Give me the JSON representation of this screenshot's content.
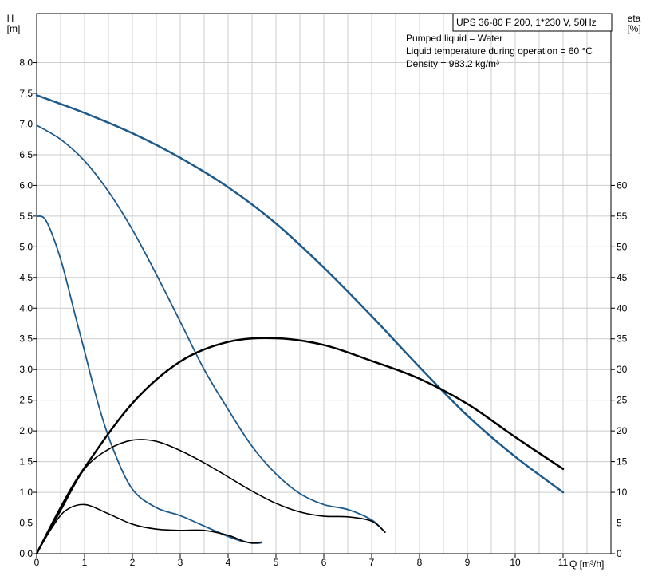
{
  "chart_data": {
    "type": "line",
    "title": "UPS 36-80 F 200, 1*230 V, 50Hz",
    "notes": [
      "Pumped liquid = Water",
      "Liquid temperature during operation = 60 °C",
      "Density = 983.2 kg/m³"
    ],
    "xlabel": "Q [m³/h]",
    "ylabel_left": {
      "symbol": "H",
      "unit": "[m]"
    },
    "ylabel_right": {
      "symbol": "eta",
      "unit": "[%]"
    },
    "xlim": [
      0,
      12
    ],
    "ylim_left": [
      0,
      8.8
    ],
    "ylim_right": [
      0,
      88
    ],
    "x_ticks": [
      "0",
      "1",
      "2",
      "3",
      "4",
      "5",
      "6",
      "7",
      "8",
      "9",
      "10",
      "11"
    ],
    "y_left_ticks": [
      "0.0",
      "0.5",
      "1.0",
      "1.5",
      "2.0",
      "2.5",
      "3.0",
      "3.5",
      "4.0",
      "4.5",
      "5.0",
      "5.5",
      "6.0",
      "6.5",
      "7.0",
      "7.5",
      "8.0"
    ],
    "y_right_ticks": [
      "0",
      "5",
      "10",
      "15",
      "20",
      "25",
      "30",
      "35",
      "40",
      "45",
      "50",
      "55",
      "60"
    ],
    "grid": true,
    "colors": {
      "head": "#1d5a8c",
      "efficiency": "#000000",
      "grid": "#cccccc",
      "border": "#000000"
    },
    "series": [
      {
        "axis": "left",
        "kind": "head",
        "color": "#1d5a8c",
        "width": 2.5,
        "points": [
          [
            0,
            7.47
          ],
          [
            1,
            7.18
          ],
          [
            2,
            6.85
          ],
          [
            3,
            6.45
          ],
          [
            4,
            5.97
          ],
          [
            5,
            5.38
          ],
          [
            6,
            4.66
          ],
          [
            7,
            3.87
          ],
          [
            8,
            3.04
          ],
          [
            9,
            2.25
          ],
          [
            10,
            1.58
          ],
          [
            11,
            1.0
          ]
        ]
      },
      {
        "axis": "left",
        "kind": "head",
        "color": "#1d5a8c",
        "width": 1.8,
        "points": [
          [
            0,
            6.98
          ],
          [
            0.5,
            6.75
          ],
          [
            1,
            6.4
          ],
          [
            1.5,
            5.9
          ],
          [
            2,
            5.28
          ],
          [
            2.5,
            4.55
          ],
          [
            3,
            3.78
          ],
          [
            3.5,
            3.0
          ],
          [
            4,
            2.35
          ],
          [
            4.5,
            1.75
          ],
          [
            5,
            1.3
          ],
          [
            5.5,
            0.98
          ],
          [
            6,
            0.8
          ],
          [
            6.5,
            0.72
          ],
          [
            7,
            0.55
          ],
          [
            7.28,
            0.35
          ]
        ]
      },
      {
        "axis": "left",
        "kind": "head",
        "color": "#1d5a8c",
        "width": 1.8,
        "points": [
          [
            0,
            5.5
          ],
          [
            0.2,
            5.42
          ],
          [
            0.5,
            4.8
          ],
          [
            0.8,
            3.9
          ],
          [
            1,
            3.3
          ],
          [
            1.3,
            2.4
          ],
          [
            1.6,
            1.7
          ],
          [
            2,
            1.05
          ],
          [
            2.5,
            0.75
          ],
          [
            3,
            0.62
          ],
          [
            3.5,
            0.45
          ],
          [
            4,
            0.28
          ],
          [
            4.3,
            0.2
          ],
          [
            4.6,
            0.17
          ],
          [
            4.7,
            0.18
          ]
        ]
      },
      {
        "axis": "right",
        "kind": "efficiency",
        "color": "#000000",
        "width": 2.5,
        "points": [
          [
            0,
            0
          ],
          [
            0.5,
            7.5
          ],
          [
            1,
            14
          ],
          [
            2,
            24.5
          ],
          [
            3,
            31.3
          ],
          [
            4,
            34.5
          ],
          [
            5,
            35.1
          ],
          [
            6,
            34.0
          ],
          [
            7,
            31.4
          ],
          [
            8,
            28.5
          ],
          [
            9,
            24.4
          ],
          [
            10,
            19.0
          ],
          [
            11,
            13.8
          ]
        ]
      },
      {
        "axis": "right",
        "kind": "efficiency",
        "color": "#000000",
        "width": 1.6,
        "points": [
          [
            0,
            0
          ],
          [
            0.5,
            7.0
          ],
          [
            1,
            13.8
          ],
          [
            1.5,
            17.0
          ],
          [
            2,
            18.5
          ],
          [
            2.5,
            18.3
          ],
          [
            3,
            16.8
          ],
          [
            3.5,
            14.8
          ],
          [
            4,
            12.5
          ],
          [
            4.5,
            10.2
          ],
          [
            5,
            8.2
          ],
          [
            5.5,
            6.8
          ],
          [
            6,
            6.1
          ],
          [
            6.5,
            6.0
          ],
          [
            7,
            5.3
          ],
          [
            7.28,
            3.5
          ]
        ]
      },
      {
        "axis": "right",
        "kind": "efficiency",
        "color": "#000000",
        "width": 1.6,
        "points": [
          [
            0,
            0
          ],
          [
            0.3,
            4.0
          ],
          [
            0.6,
            7.0
          ],
          [
            1,
            8.0
          ],
          [
            1.5,
            6.5
          ],
          [
            2,
            4.8
          ],
          [
            2.5,
            4.0
          ],
          [
            3,
            3.8
          ],
          [
            3.5,
            3.8
          ],
          [
            4,
            3.0
          ],
          [
            4.3,
            2.1
          ],
          [
            4.5,
            1.7
          ],
          [
            4.7,
            1.9
          ]
        ]
      }
    ]
  }
}
